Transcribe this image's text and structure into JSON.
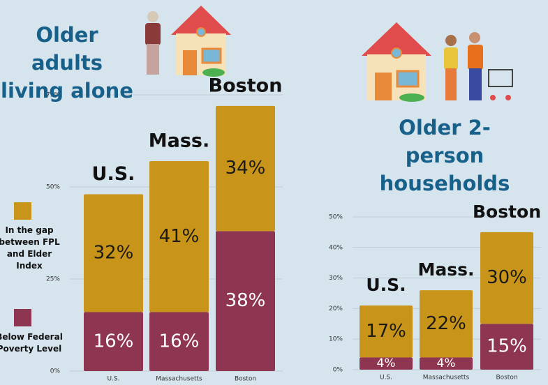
{
  "chart_data": [
    {
      "type": "stacked_bar",
      "title": "Older adults living alone",
      "categories": [
        "U.S.",
        "Massachusetts",
        "Boston"
      ],
      "annotations": [
        "U.S.",
        "Mass.",
        "Boston"
      ],
      "series": [
        {
          "name": "Below Federal Poverty Level",
          "color": "#8e3552",
          "values": [
            16,
            16,
            38
          ],
          "value_labels": [
            "16%",
            "16%",
            "38%"
          ]
        },
        {
          "name": "In the gap between FPL and Elder Index",
          "color": "#c8951a",
          "values": [
            32,
            41,
            34
          ],
          "value_labels": [
            "32%",
            "41%",
            "34%"
          ]
        }
      ],
      "ylim": [
        0,
        75
      ],
      "yticks": [
        {
          "value": 0,
          "label": "0%"
        },
        {
          "value": 25,
          "label": "25%"
        },
        {
          "value": 50,
          "label": "50%"
        },
        {
          "value": 75,
          "label": "75%"
        }
      ],
      "grid": true
    },
    {
      "type": "stacked_bar",
      "title": "Older 2-person households",
      "categories": [
        "U.S.",
        "Massachusetts",
        "Boston"
      ],
      "annotations": [
        "U.S.",
        "Mass.",
        "Boston"
      ],
      "series": [
        {
          "name": "Below Federal Poverty Level",
          "color": "#8e3552",
          "values": [
            4,
            4,
            15
          ],
          "value_labels": [
            "4%",
            "4%",
            "15%"
          ]
        },
        {
          "name": "In the gap between FPL and Elder Index",
          "color": "#c8951a",
          "values": [
            17,
            22,
            30
          ],
          "value_labels": [
            "17%",
            "22%",
            "30%"
          ]
        }
      ],
      "ylim": [
        0,
        50
      ],
      "yticks": [
        {
          "value": 0,
          "label": "0%"
        },
        {
          "value": 10,
          "label": "10%"
        },
        {
          "value": 20,
          "label": "20%"
        },
        {
          "value": 30,
          "label": "30%"
        },
        {
          "value": 40,
          "label": "40%"
        },
        {
          "value": 50,
          "label": "50%"
        }
      ],
      "grid": true
    }
  ]
}
